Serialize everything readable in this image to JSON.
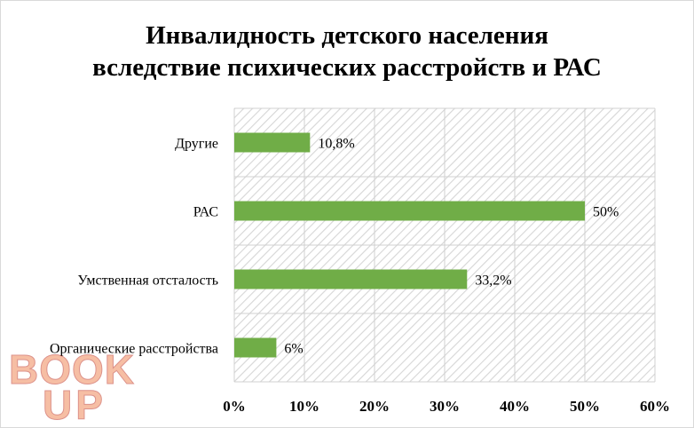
{
  "chart_data": {
    "type": "bar",
    "orientation": "horizontal",
    "title_lines": [
      "Инвалидность детского населения",
      "вследствие психических расстройств  и РАС"
    ],
    "categories": [
      "Другие",
      "РАС",
      "Умственная отсталость",
      "Органические расстройства"
    ],
    "values": [
      10.8,
      50,
      33.2,
      6
    ],
    "value_labels": [
      "10,8%",
      "50%",
      "33,2%",
      "6%"
    ],
    "xlim": [
      0,
      60
    ],
    "x_tick_labels": [
      "0%",
      "10%",
      "20%",
      "30%",
      "40%",
      "50%",
      "60%"
    ],
    "grid": true,
    "bar_color": "#70ad47",
    "legend": "none"
  },
  "watermark": {
    "text_top": "BOOK",
    "text_bottom": "UP",
    "color": "#f08a5a"
  }
}
